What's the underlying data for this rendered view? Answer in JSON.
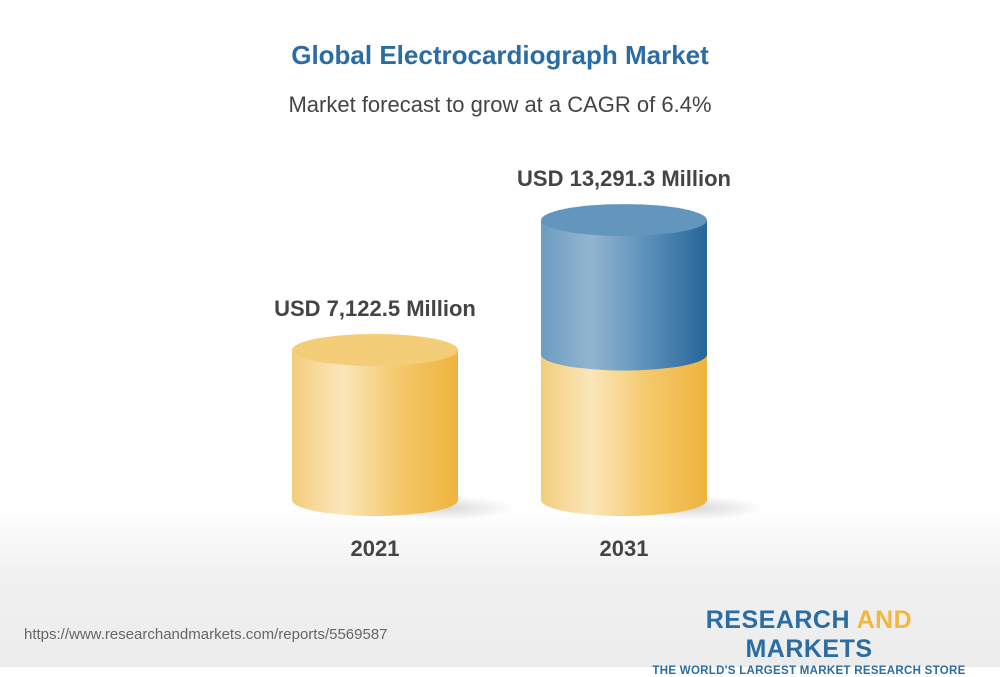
{
  "chart_data": {
    "type": "bar",
    "style": "3d-cylinder",
    "title": "Global Electrocardiograph Market",
    "subtitle": "Market forecast to grow at a CAGR of 6.4%",
    "categories": [
      "2021",
      "2031"
    ],
    "values": [
      7122.5,
      13291.3
    ],
    "data_labels": [
      "USD 7,122.5 Million",
      "USD 13,291.3 Million"
    ],
    "unit": "USD Million",
    "xlabel": "",
    "ylabel": "",
    "grid": false,
    "colors": {
      "base": "#f2c35a",
      "growth": "#2b6ca3",
      "title": "#2b6ca3"
    }
  },
  "footer": {
    "url": "https://www.researchandmarkets.com/reports/5569587",
    "logo_part1": "RESEARCH ",
    "logo_part2": "AND",
    "logo_part3": " MARKETS",
    "tagline": "THE WORLD'S LARGEST MARKET RESEARCH STORE"
  }
}
